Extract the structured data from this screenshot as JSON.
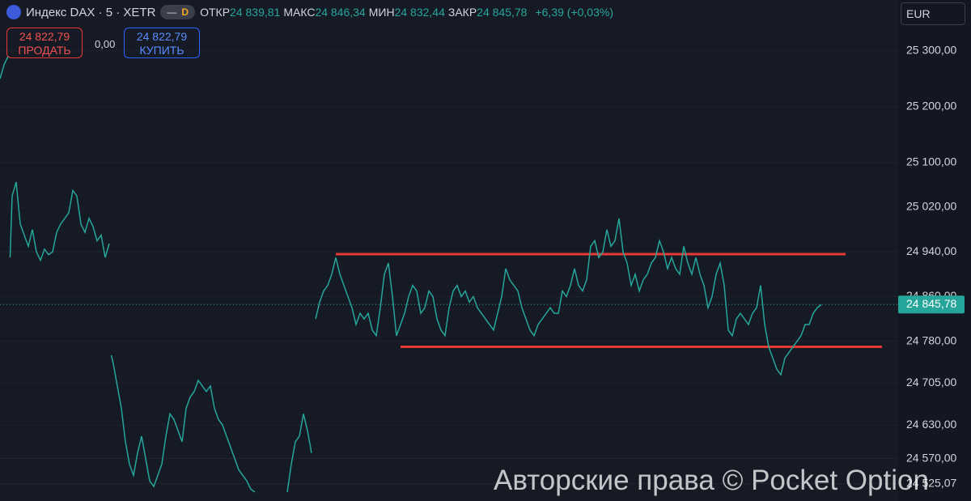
{
  "header": {
    "title": "Индекс DAX · 5 · XETR",
    "badge": "D",
    "stats": [
      {
        "label": "ОТКР",
        "value": "24 839,81"
      },
      {
        "label": "МАКС",
        "value": "24 846,34"
      },
      {
        "label": "МИН",
        "value": "24 832,44"
      },
      {
        "label": "ЗАКР",
        "value": "24 845,78"
      }
    ],
    "change": "+6,39 (+0,03%)"
  },
  "trade": {
    "sell_price": "24 822,79",
    "sell_label": "ПРОДАТЬ",
    "spread": "0,00",
    "buy_price": "24 822,79",
    "buy_label": "КУПИТЬ"
  },
  "currency": "EUR",
  "watermark": "Авторские права © Pocket Option",
  "chart_data": {
    "type": "line",
    "color": "#26a69a",
    "grid": true,
    "xlim": [
      0,
      222
    ],
    "ylim": [
      24494,
      25391
    ],
    "yticks": [
      {
        "value": 25300,
        "label": "25 300,00"
      },
      {
        "value": 25200,
        "label": "25 200,00"
      },
      {
        "value": 25100,
        "label": "25 100,00"
      },
      {
        "value": 25020,
        "label": "25 020,00"
      },
      {
        "value": 24940,
        "label": "24 940,00"
      },
      {
        "value": 24860,
        "label": "24 860,00"
      },
      {
        "value": 24780,
        "label": "24 780,00"
      },
      {
        "value": 24705,
        "label": "24 705,00"
      },
      {
        "value": 24630,
        "label": "24 630,00"
      },
      {
        "value": 24570,
        "label": "24 570,00"
      },
      {
        "value": 24525.07,
        "label": "24 525,07"
      }
    ],
    "current_price": {
      "value": 24845.78,
      "label": "24 845,78"
    },
    "levels": [
      {
        "value": 24936,
        "from": 83,
        "to": 209,
        "color": "#e53935"
      },
      {
        "value": 24770,
        "from": 99,
        "to": 218,
        "color": "#e53935"
      }
    ],
    "x": [
      0,
      1,
      2,
      2.2,
      2.5,
      3,
      4,
      5,
      6,
      7,
      8,
      9,
      10,
      11,
      12,
      13,
      14,
      15,
      16,
      17,
      18,
      19,
      20,
      21,
      22,
      23,
      24,
      25,
      26,
      27,
      27.2,
      27.5,
      28,
      29,
      30,
      31,
      32,
      33,
      34,
      35,
      36,
      37,
      38,
      39,
      40,
      41,
      42,
      43,
      44,
      45,
      46,
      47,
      48,
      49,
      50,
      51,
      52,
      53,
      54,
      55,
      56,
      57,
      58,
      59,
      60,
      61,
      62,
      63,
      67,
      71,
      72,
      73,
      74,
      75,
      76,
      77,
      77.5,
      78,
      79,
      80,
      81,
      82,
      83,
      84,
      85,
      86,
      87,
      88,
      89,
      90,
      91,
      92,
      93,
      94,
      95,
      96,
      97,
      98,
      99,
      100,
      101,
      102,
      103,
      104,
      105,
      106,
      107,
      108,
      109,
      110,
      111,
      112,
      113,
      114,
      115,
      116,
      117,
      118,
      119,
      120,
      121,
      122,
      123,
      124,
      125,
      126,
      127,
      128,
      129,
      130,
      131,
      132,
      133,
      134,
      135,
      136,
      137,
      138,
      139,
      140,
      141,
      142,
      143,
      144,
      145,
      146,
      147,
      148,
      149,
      150,
      151,
      152,
      153,
      154,
      155,
      156,
      157,
      158,
      159,
      160,
      161,
      162,
      163,
      164,
      165,
      166,
      167,
      168,
      169,
      170,
      171,
      172,
      173,
      174,
      175,
      176,
      177,
      178,
      179,
      180,
      181,
      182,
      183,
      184,
      185,
      186,
      187,
      188,
      189,
      190,
      191,
      192,
      193,
      194,
      195,
      196,
      197,
      198,
      199,
      200,
      201,
      202,
      203
    ],
    "values": [
      25250,
      25275,
      25290,
      null,
      24930,
      25040,
      25065,
      24990,
      24970,
      24950,
      24980,
      24940,
      24925,
      24945,
      24935,
      24940,
      24975,
      24990,
      25000,
      25010,
      25050,
      25040,
      24990,
      24975,
      25000,
      24985,
      24960,
      24970,
      24930,
      24955,
      null,
      24755,
      24740,
      24700,
      24660,
      24600,
      24560,
      24540,
      24580,
      24610,
      24570,
      24530,
      24520,
      24540,
      24560,
      24610,
      24650,
      24640,
      24620,
      24600,
      24660,
      24680,
      24690,
      24710,
      24700,
      24690,
      24700,
      24660,
      24640,
      24630,
      24610,
      24590,
      24570,
      24550,
      24540,
      24530,
      24515,
      24510,
      null,
      24510,
      24560,
      24600,
      24610,
      24650,
      24620,
      24580,
      null,
      24820,
      24850,
      24870,
      24880,
      24900,
      24930,
      24900,
      24880,
      24860,
      24840,
      24810,
      24830,
      24820,
      24830,
      24800,
      24790,
      24840,
      24900,
      24920,
      24860,
      24790,
      24810,
      24830,
      24860,
      24880,
      24870,
      24830,
      24840,
      24870,
      24860,
      24820,
      24800,
      24790,
      24840,
      24870,
      24880,
      24860,
      24870,
      24850,
      24860,
      24840,
      24830,
      24820,
      24810,
      24800,
      24830,
      24860,
      24910,
      24890,
      24880,
      24870,
      24840,
      24820,
      24800,
      24790,
      24810,
      24820,
      24830,
      24840,
      24830,
      24830,
      24870,
      24860,
      24880,
      24910,
      24880,
      24870,
      24890,
      24950,
      24960,
      24930,
      24940,
      24980,
      24950,
      24960,
      25000,
      24940,
      24920,
      24880,
      24900,
      24870,
      24890,
      24900,
      24920,
      24930,
      24960,
      24940,
      24910,
      24930,
      24910,
      24900,
      24950,
      24920,
      24900,
      24930,
      24900,
      24880,
      24840,
      24860,
      24900,
      24920,
      24880,
      24800,
      24790,
      24820,
      24830,
      24820,
      24810,
      24830,
      24840,
      24880,
      24810,
      24770,
      24750,
      24730,
      24720,
      24750,
      24760,
      24770,
      24780,
      24790,
      24810,
      24810,
      24830,
      24840,
      24845.78
    ]
  }
}
